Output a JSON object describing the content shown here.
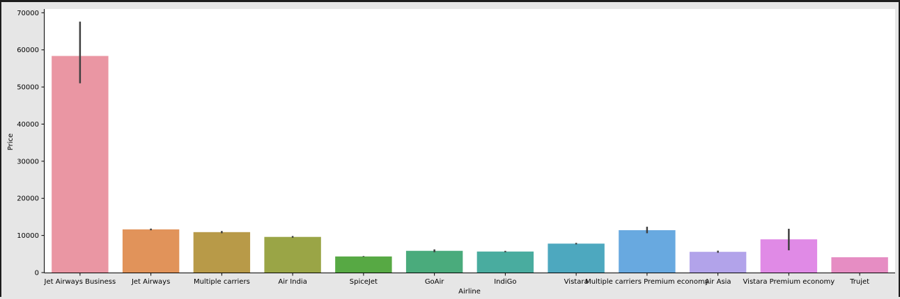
{
  "chart_data": {
    "type": "bar",
    "xlabel": "Airline",
    "ylabel": "Price",
    "ylim": [
      0,
      71000
    ],
    "yticks": [
      0,
      10000,
      20000,
      30000,
      40000,
      50000,
      60000,
      70000
    ],
    "grid": false,
    "categories": [
      "Jet Airways Business",
      "Jet Airways",
      "Multiple carriers",
      "Air India",
      "SpiceJet",
      "GoAir",
      "IndiGo",
      "Vistara",
      "Multiple carriers Premium economy",
      "Air Asia",
      "Vistara Premium economy",
      "Trujet"
    ],
    "values": [
      58360,
      11640,
      10900,
      9610,
      4340,
      5860,
      5670,
      7800,
      11420,
      5590,
      8960,
      4140
    ],
    "ci_low": [
      51000,
      11400,
      10600,
      9400,
      4250,
      5500,
      5500,
      7600,
      10600,
      5350,
      6000,
      4140
    ],
    "ci_high": [
      67600,
      11850,
      11200,
      9850,
      4450,
      6250,
      5850,
      8000,
      12350,
      5900,
      11800,
      4140
    ],
    "colors": [
      "#ea96a3",
      "#e1935a",
      "#b89a48",
      "#9aa546",
      "#57a944",
      "#4aab7c",
      "#49ac9f",
      "#4da8bf",
      "#68a9e0",
      "#b2a3ea",
      "#e08ae6",
      "#e68dc3"
    ]
  }
}
